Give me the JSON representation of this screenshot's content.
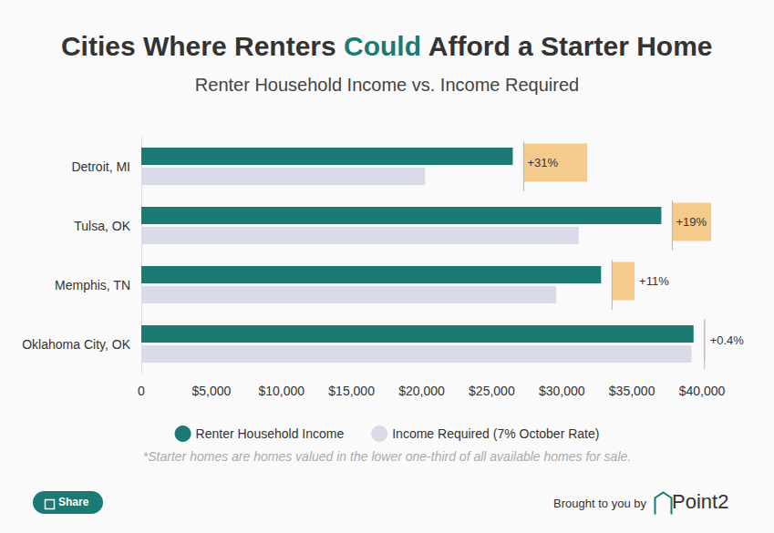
{
  "chart_data": {
    "type": "bar",
    "orientation": "horizontal",
    "title": "Cities Where Renters Could Afford a Starter Home",
    "title_highlight": "Could",
    "subtitle": "Renter Household Income vs. Income Required",
    "categories": [
      "Detroit, MI",
      "Tulsa, OK",
      "Memphis, TN",
      "Oklahoma City, OK"
    ],
    "series": [
      {
        "name": "Renter Household Income",
        "color": "#1b7a73",
        "values": [
          26500,
          37100,
          32800,
          39400
        ]
      },
      {
        "name": "Income Required (7% October Rate)",
        "color": "#d9dce8",
        "values": [
          20250,
          31200,
          29600,
          39250
        ]
      }
    ],
    "differences": {
      "values": [
        31,
        19,
        11,
        0.4
      ],
      "value_labels": [
        "+31%",
        "+19%",
        "+11%",
        "+0.4%"
      ],
      "color": "#f5cb8c"
    },
    "xlim": [
      0,
      40000
    ],
    "xticks": [
      0,
      {
        "value": 5000,
        "label": "$5,000"
      },
      {
        "value": 10000,
        "label": "$10,000"
      },
      {
        "value": 15000,
        "label": "$15,000"
      },
      {
        "value": 20000,
        "label": "$20,000"
      },
      {
        "value": 25000,
        "label": "$25,000"
      },
      {
        "value": 30000,
        "label": "$30,000"
      },
      {
        "value": 35000,
        "label": "$35,000"
      },
      {
        "value": 40000,
        "label": "$40,000"
      }
    ],
    "grid": false,
    "legend": "bottom",
    "footnote": "*Starter homes are homes valued in the lower one-third of all available homes for sale.",
    "share_label": "Share",
    "credit": "Brought to you by",
    "brand": "Point2"
  }
}
